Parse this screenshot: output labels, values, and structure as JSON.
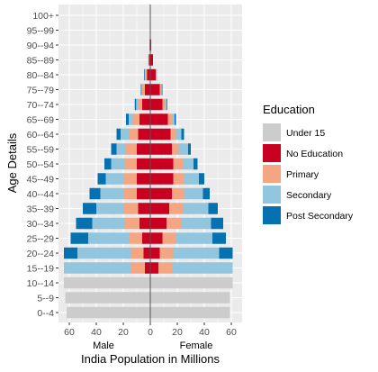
{
  "chart_data": {
    "type": "bar",
    "orientation": "horizontal-population-pyramid",
    "title": "",
    "xlabel": "India Population in Millions",
    "ylabel": "Age Details",
    "side_labels": {
      "left": "Male",
      "right": "Female"
    },
    "xticks": [
      60,
      40,
      20,
      0,
      20,
      40,
      60
    ],
    "xlim": [
      -65,
      65
    ],
    "grid": true,
    "legend": {
      "title": "Education",
      "placement": "right"
    },
    "categories": [
      "0--4",
      "5--9",
      "10--14",
      "15--19",
      "20--24",
      "25--29",
      "30--34",
      "35--39",
      "40--44",
      "45--49",
      "50--54",
      "55--59",
      "60--64",
      "65--69",
      "70--74",
      "75--79",
      "80--84",
      "85--89",
      "90--94",
      "95--99",
      "100+"
    ],
    "series": [
      {
        "name": "Under 15",
        "color": "#cccccc",
        "male": [
          62,
          63,
          64,
          0,
          0,
          0,
          0,
          0,
          0,
          0,
          0,
          0,
          0,
          0,
          0,
          0,
          0,
          0,
          0,
          0,
          0
        ],
        "female": [
          59,
          59,
          61,
          0,
          0,
          0,
          0,
          0,
          0,
          0,
          0,
          0,
          0,
          0,
          0,
          0,
          0,
          0,
          0,
          0,
          0
        ]
      },
      {
        "name": "No Education",
        "color": "#ca0020",
        "male": [
          0,
          0,
          0,
          4,
          5,
          6,
          8,
          9,
          10,
          10,
          10,
          10,
          9,
          8,
          6,
          4,
          2.5,
          1,
          0.5,
          0,
          0
        ],
        "female": [
          0,
          0,
          0,
          6,
          7,
          9,
          12,
          14,
          16,
          17,
          17,
          16,
          15,
          13,
          9,
          7,
          4,
          2,
          0.7,
          0.2,
          0.2
        ]
      },
      {
        "name": "Primary",
        "color": "#f4a582",
        "male": [
          0,
          0,
          0,
          10,
          9,
          10,
          11,
          11,
          10,
          10,
          9,
          8,
          7,
          5,
          3,
          2,
          1,
          0.5,
          0,
          0,
          0
        ],
        "female": [
          0,
          0,
          0,
          10,
          10,
          10,
          11,
          10,
          9,
          8,
          7,
          5,
          4,
          3,
          2,
          1,
          0.5,
          0,
          0,
          0,
          0
        ]
      },
      {
        "name": "Secondary",
        "color": "#92c5de",
        "male": [
          0,
          0,
          0,
          50,
          40,
          30,
          24,
          20,
          17,
          13,
          10,
          7,
          6,
          3,
          1.5,
          0.5,
          0.5,
          0,
          0,
          0,
          0
        ],
        "female": [
          0,
          0,
          0,
          45,
          34,
          27,
          22,
          19,
          14,
          11,
          8,
          7,
          4,
          2,
          1,
          0.5,
          0.5,
          0,
          0,
          0,
          0
        ]
      },
      {
        "name": "Post Secondary",
        "color": "#0571b0",
        "male": [
          0,
          0,
          0,
          0,
          10,
          13,
          12,
          10,
          8,
          6,
          5,
          4,
          3,
          2,
          1,
          0.5,
          0.5,
          0,
          0,
          0,
          0
        ],
        "female": [
          0,
          0,
          0,
          0,
          10,
          10,
          9,
          7,
          5,
          4,
          3,
          2,
          2,
          1,
          0.5,
          0.5,
          0,
          0,
          0,
          0,
          0
        ]
      }
    ]
  }
}
